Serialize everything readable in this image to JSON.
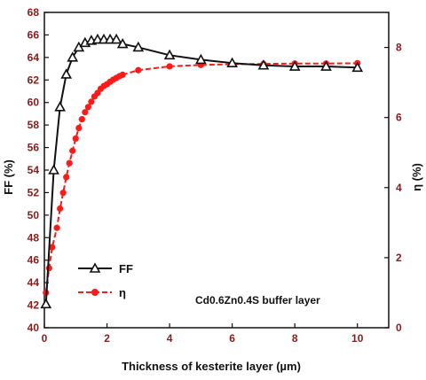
{
  "chart_data": {
    "type": "line",
    "xlabel": "Thickness of kesterite layer (µm)",
    "ylabel_left": "FF (%)",
    "ylabel_right": "η (%)",
    "xlim": [
      0,
      11
    ],
    "ylim_left": [
      40,
      68
    ],
    "ylim_right": [
      0,
      9
    ],
    "x_ticks": [
      0,
      2,
      4,
      6,
      8,
      10
    ],
    "y_ticks_left": [
      40,
      42,
      44,
      46,
      48,
      50,
      52,
      54,
      56,
      58,
      60,
      62,
      64,
      66,
      68
    ],
    "y_ticks_right": [
      0,
      2,
      4,
      6,
      8
    ],
    "annotation": "Cd0.6Zn0.4S buffer layer",
    "legend_position": "bottom-left",
    "series": [
      {
        "name": "FF",
        "axis": "left",
        "color": "#111111",
        "marker": "open-triangle",
        "x": [
          0.05,
          0.3,
          0.5,
          0.7,
          0.9,
          1.1,
          1.3,
          1.5,
          1.7,
          1.9,
          2.1,
          2.3,
          2.5,
          3.0,
          4.0,
          5.0,
          6.0,
          7.0,
          8.0,
          9.0,
          10.0
        ],
        "values": [
          42.1,
          54.0,
          59.6,
          62.5,
          64.0,
          64.9,
          65.3,
          65.5,
          65.6,
          65.6,
          65.6,
          65.6,
          65.2,
          64.9,
          64.2,
          63.8,
          63.5,
          63.3,
          63.2,
          63.2,
          63.1
        ]
      },
      {
        "name": "η",
        "axis": "right",
        "color": "#ff1a1a",
        "marker": "filled-circle",
        "x": [
          0.05,
          0.15,
          0.25,
          0.4,
          0.5,
          0.6,
          0.7,
          0.8,
          0.9,
          1.0,
          1.1,
          1.2,
          1.3,
          1.4,
          1.5,
          1.6,
          1.7,
          1.8,
          1.9,
          2.0,
          2.1,
          2.2,
          2.3,
          2.4,
          2.5,
          3.0,
          4.0,
          5.0,
          6.0,
          7.0,
          8.0,
          9.0,
          10.0
        ],
        "values": [
          1.0,
          1.7,
          2.3,
          2.85,
          3.4,
          3.85,
          4.3,
          4.7,
          5.05,
          5.4,
          5.7,
          5.95,
          6.15,
          6.3,
          6.45,
          6.6,
          6.7,
          6.82,
          6.9,
          6.95,
          7.02,
          7.08,
          7.13,
          7.18,
          7.22,
          7.35,
          7.46,
          7.5,
          7.52,
          7.53,
          7.54,
          7.54,
          7.55
        ]
      }
    ]
  }
}
